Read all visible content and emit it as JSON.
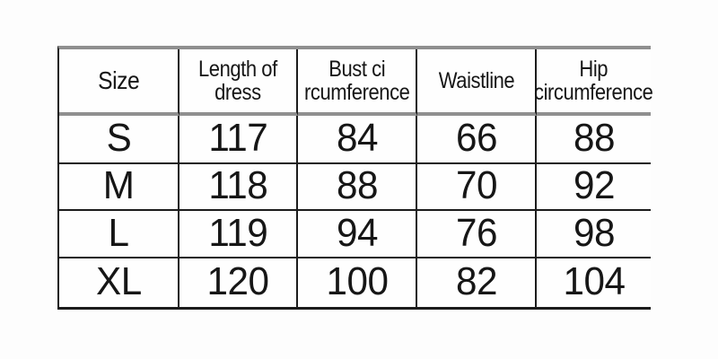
{
  "page": {
    "background_color": "#fdfdfd",
    "accent_border_color": "#8f8f8f",
    "line_color": "#1c1c1c",
    "text_color": "#161616"
  },
  "table": {
    "header_display": [
      "Size",
      "Length of\ndress",
      "Bust ci\nrcumference",
      "Waistline",
      "Hip\ncircumference"
    ]
  },
  "chart_data": {
    "type": "table",
    "title": "",
    "columns": [
      "Size",
      "Length of dress",
      "Bust circumference",
      "Waistline",
      "Hip circumference"
    ],
    "rows": [
      {
        "size": "S",
        "values": [
          117,
          84,
          66,
          88
        ]
      },
      {
        "size": "M",
        "values": [
          118,
          88,
          70,
          92
        ]
      },
      {
        "size": "L",
        "values": [
          119,
          94,
          76,
          98
        ]
      },
      {
        "size": "XL",
        "values": [
          120,
          100,
          82,
          104
        ]
      }
    ]
  }
}
